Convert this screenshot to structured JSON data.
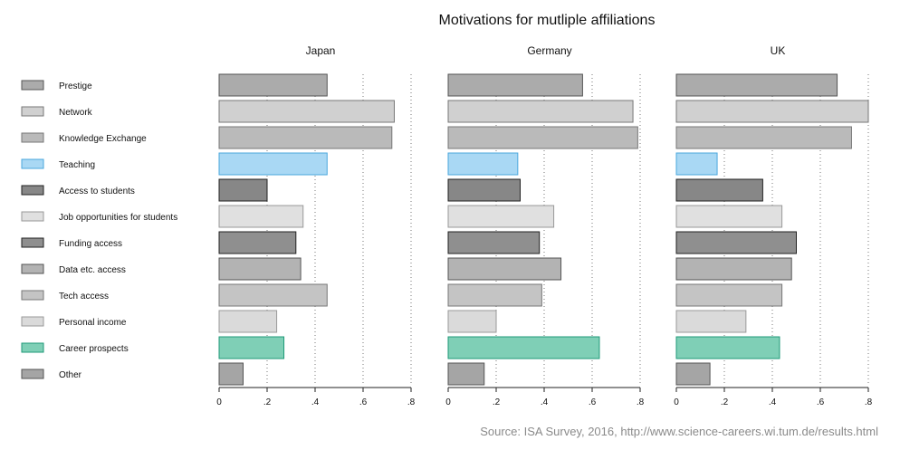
{
  "chart_data": {
    "type": "bar",
    "orientation": "horizontal",
    "title": "Motivations for mutliple affiliations",
    "source": "Source: ISA Survey, 2016, http://www.science-careers.wi.tum.de/results.html",
    "xlim": [
      0,
      0.8
    ],
    "x_ticks": [
      0,
      0.2,
      0.4,
      0.6,
      0.8
    ],
    "x_tick_labels": [
      "0",
      ".2",
      ".4",
      ".6",
      ".8"
    ],
    "grid": "vertical dotted lines at .2, .4, .6, .8",
    "legend_position": "left",
    "categories": [
      "Prestige",
      "Network",
      "Knowledge Exchange",
      "Teaching",
      "Access to students",
      "Job opportunities for students",
      "Funding access",
      "Data etc. access",
      "Tech access",
      "Personal income",
      "Career prospects",
      "Other"
    ],
    "category_colors": [
      "#ababab",
      "#d0d0d0",
      "#bababa",
      "#a9d8f4",
      "#878787",
      "#e0e0e0",
      "#8f8f8f",
      "#b3b3b3",
      "#c4c4c4",
      "#dadada",
      "#7fcfb6",
      "#a5a5a5"
    ],
    "category_strokes": [
      "#555555",
      "#777777",
      "#777777",
      "#4aa7dd",
      "#222222",
      "#999999",
      "#222222",
      "#555555",
      "#777777",
      "#999999",
      "#1f9a78",
      "#555555"
    ],
    "panels": [
      {
        "name": "Japan",
        "values": [
          0.45,
          0.73,
          0.72,
          0.45,
          0.2,
          0.35,
          0.32,
          0.34,
          0.45,
          0.24,
          0.27,
          0.1
        ]
      },
      {
        "name": "Germany",
        "values": [
          0.56,
          0.77,
          0.79,
          0.29,
          0.3,
          0.44,
          0.38,
          0.47,
          0.39,
          0.2,
          0.63,
          0.15
        ]
      },
      {
        "name": "UK",
        "values": [
          0.67,
          0.8,
          0.73,
          0.17,
          0.36,
          0.44,
          0.5,
          0.48,
          0.44,
          0.29,
          0.43,
          0.14
        ]
      }
    ]
  }
}
